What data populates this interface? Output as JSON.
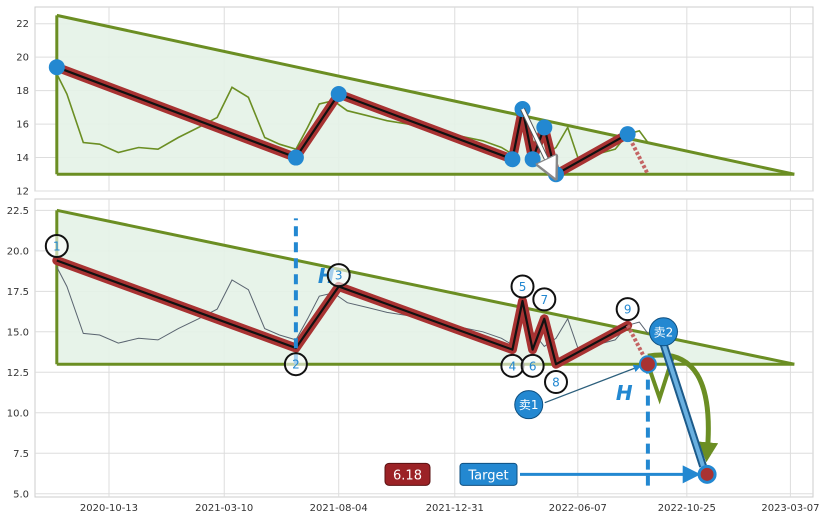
{
  "chart_data": [
    {
      "type": "line",
      "panel": "top",
      "title": "",
      "xlabel": "",
      "ylabel": "",
      "ylim": [
        12,
        23
      ],
      "y_ticks": [
        12,
        14,
        16,
        18,
        20,
        22
      ],
      "grid": true,
      "triangle": {
        "top_left": [
          "2020-08-07",
          22.5
        ],
        "bottom_left": [
          "2020-08-07",
          13.0
        ],
        "right": [
          "2023-03-12",
          13.0
        ]
      },
      "price_series_color": "#6b8e23",
      "price_series": {
        "x": [
          "2020-08-07",
          "2020-08-20",
          "2020-09-10",
          "2020-10-01",
          "2020-10-25",
          "2020-11-20",
          "2020-12-15",
          "2021-01-10",
          "2021-02-05",
          "2021-03-01",
          "2021-03-20",
          "2021-04-10",
          "2021-05-01",
          "2021-05-20",
          "2021-06-10",
          "2021-06-25",
          "2021-07-10",
          "2021-07-28",
          "2021-08-15",
          "2021-09-10",
          "2021-10-05",
          "2021-11-01",
          "2021-12-01",
          "2022-01-05",
          "2022-02-05",
          "2022-03-01",
          "2022-03-15",
          "2022-03-28",
          "2022-04-10",
          "2022-04-25",
          "2022-05-10",
          "2022-05-25",
          "2022-06-10",
          "2022-07-01",
          "2022-07-25",
          "2022-08-10",
          "2022-08-25",
          "2022-09-05"
        ],
        "y": [
          19.0,
          17.8,
          14.9,
          14.8,
          14.3,
          14.6,
          14.5,
          15.2,
          15.8,
          16.4,
          18.2,
          17.6,
          15.2,
          14.8,
          14.5,
          15.8,
          17.2,
          17.4,
          16.8,
          16.5,
          16.2,
          16.0,
          15.7,
          15.3,
          15.0,
          14.6,
          14.2,
          16.9,
          15.0,
          14.1,
          14.6,
          15.8,
          13.6,
          14.2,
          14.5,
          15.4,
          15.6,
          14.9
        ]
      },
      "pattern_line": {
        "x": [
          "2020-08-07",
          "2021-06-10",
          "2021-08-04",
          "2022-03-15",
          "2022-03-28",
          "2022-04-10",
          "2022-04-25",
          "2022-05-10",
          "2022-08-10",
          "2022-09-05"
        ],
        "y": [
          19.4,
          14.0,
          17.8,
          13.9,
          16.9,
          13.9,
          15.8,
          13.0,
          15.4,
          13.0
        ]
      },
      "points": [
        {
          "x": "2020-08-07",
          "y": 19.4
        },
        {
          "x": "2021-06-10",
          "y": 14.0
        },
        {
          "x": "2021-08-04",
          "y": 17.8
        },
        {
          "x": "2022-03-15",
          "y": 13.9
        },
        {
          "x": "2022-03-28",
          "y": 16.9
        },
        {
          "x": "2022-04-10",
          "y": 13.9
        },
        {
          "x": "2022-04-25",
          "y": 15.8
        },
        {
          "x": "2022-05-10",
          "y": 13.0
        },
        {
          "x": "2022-08-10",
          "y": 15.4
        }
      ],
      "arrow": {
        "from": [
          "2022-03-28",
          16.9
        ],
        "to": [
          "2022-05-08",
          12.9
        ]
      }
    },
    {
      "type": "line",
      "panel": "bottom",
      "title": "",
      "xlabel": "",
      "ylabel": "",
      "ylim": [
        4.8,
        23.2
      ],
      "y_ticks": [
        5.0,
        7.5,
        10.0,
        12.5,
        15.0,
        17.5,
        20.0,
        22.5
      ],
      "x_ticks": [
        "2020-10-13",
        "2021-03-10",
        "2021-08-04",
        "2021-12-31",
        "2022-06-07",
        "2022-10-25",
        "2023-03-07"
      ],
      "grid": true,
      "triangle": {
        "top_left": [
          "2020-08-07",
          22.5
        ],
        "bottom_left": [
          "2020-08-07",
          13.0
        ],
        "right": [
          "2023-03-12",
          13.0
        ]
      },
      "price_series_color": "#5a6470",
      "price_series": {
        "x": [
          "2020-08-07",
          "2020-08-20",
          "2020-09-10",
          "2020-10-01",
          "2020-10-25",
          "2020-11-20",
          "2020-12-15",
          "2021-01-10",
          "2021-02-05",
          "2021-03-01",
          "2021-03-20",
          "2021-04-10",
          "2021-05-01",
          "2021-05-20",
          "2021-06-10",
          "2021-06-25",
          "2021-07-10",
          "2021-07-28",
          "2021-08-15",
          "2021-09-10",
          "2021-10-05",
          "2021-11-01",
          "2021-12-01",
          "2022-01-05",
          "2022-02-05",
          "2022-03-01",
          "2022-03-15",
          "2022-03-28",
          "2022-04-10",
          "2022-04-25",
          "2022-05-10",
          "2022-05-25",
          "2022-06-10",
          "2022-07-01",
          "2022-07-25",
          "2022-08-10",
          "2022-08-25",
          "2022-09-05"
        ],
        "y": [
          19.0,
          17.8,
          14.9,
          14.8,
          14.3,
          14.6,
          14.5,
          15.2,
          15.8,
          16.4,
          18.2,
          17.6,
          15.2,
          14.8,
          14.5,
          15.8,
          17.2,
          17.4,
          16.8,
          16.5,
          16.2,
          16.0,
          15.7,
          15.3,
          15.0,
          14.6,
          14.2,
          16.9,
          15.0,
          14.1,
          14.6,
          15.8,
          13.6,
          14.2,
          14.5,
          15.4,
          15.6,
          14.9
        ]
      },
      "pattern_line": {
        "x": [
          "2020-08-07",
          "2021-06-10",
          "2021-08-04",
          "2022-03-15",
          "2022-03-28",
          "2022-04-10",
          "2022-04-25",
          "2022-05-10",
          "2022-08-10",
          "2022-09-05"
        ],
        "y": [
          19.4,
          14.0,
          17.8,
          13.9,
          16.9,
          13.9,
          15.8,
          13.0,
          15.4,
          13.0
        ]
      },
      "labeled_points": [
        {
          "label": "1",
          "x": "2020-08-07",
          "y": 20.3
        },
        {
          "label": "2",
          "x": "2021-06-10",
          "y": 13.0
        },
        {
          "label": "3",
          "x": "2021-08-04",
          "y": 18.5
        },
        {
          "label": "4",
          "x": "2022-03-15",
          "y": 12.9
        },
        {
          "label": "5",
          "x": "2022-03-28",
          "y": 17.8
        },
        {
          "label": "6",
          "x": "2022-04-10",
          "y": 12.9
        },
        {
          "label": "7",
          "x": "2022-04-25",
          "y": 17.0
        },
        {
          "label": "8",
          "x": "2022-05-10",
          "y": 11.9
        },
        {
          "label": "9",
          "x": "2022-08-10",
          "y": 16.4
        }
      ],
      "height_marker_label": "H",
      "height_marker_label_2": "H",
      "height_line_1": {
        "x": "2021-06-10",
        "y1": 13.0,
        "y2": 22.0
      },
      "height_line_2": {
        "x": "2022-09-05",
        "y1": 5.5,
        "y2": 13.0
      },
      "sell_points": [
        {
          "label": "卖1",
          "x": "2022-04-05",
          "y": 10.5
        },
        {
          "label": "卖2",
          "x": "2022-09-25",
          "y": 15.0
        }
      ],
      "breakout_point": {
        "x": "2022-09-05",
        "y": 13.0
      },
      "projection_path": {
        "x": [
          "2022-09-05",
          "2022-09-20",
          "2022-10-08"
        ],
        "y": [
          13.0,
          10.9,
          13.6
        ]
      },
      "target_point": {
        "x": "2022-11-20",
        "y": 6.2
      },
      "price_box": "6.18",
      "target_label": "Target",
      "colors": {
        "pattern": "#a83232",
        "triangle": "#6b8e23",
        "fill": "#e4f2e7",
        "accent": "#2388d1",
        "price_box": "#9b2226"
      }
    }
  ]
}
